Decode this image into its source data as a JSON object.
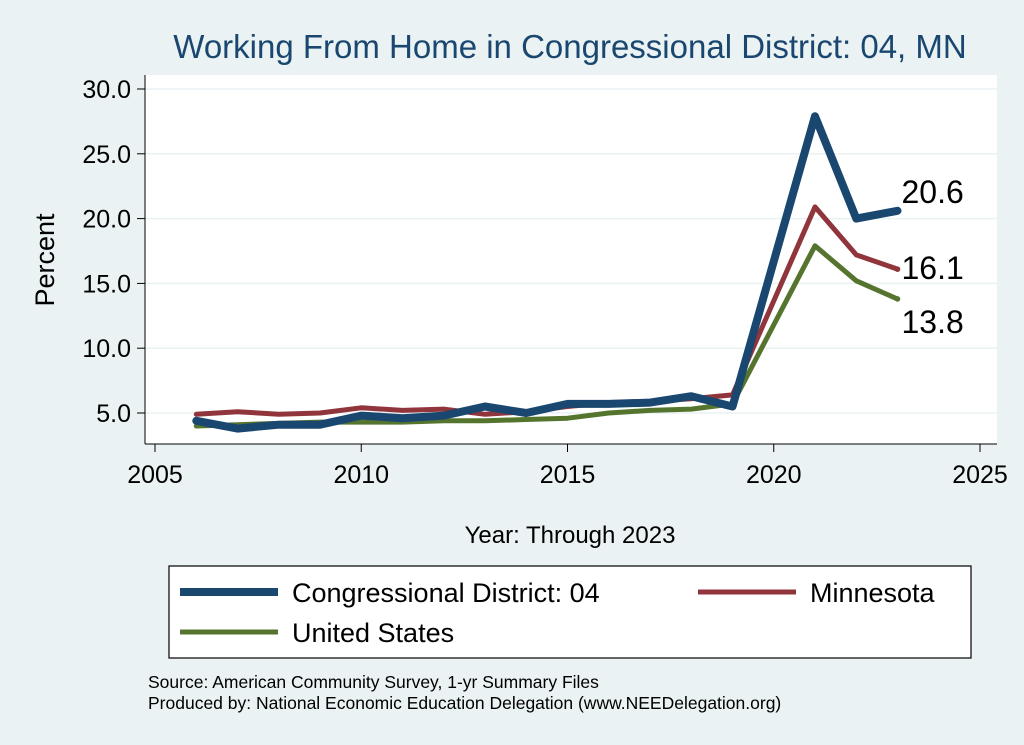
{
  "chart_data": {
    "type": "line",
    "title": "Working From Home in Congressional District: 04, MN",
    "xlabel": "Year: Through 2023",
    "ylabel": "Percent",
    "xlim": [
      2005,
      2025
    ],
    "ylim": [
      3.5,
      30.0
    ],
    "xticks": [
      2005,
      2010,
      2015,
      2020,
      2025
    ],
    "xtick_labels": [
      "2005",
      "2010",
      "2015",
      "2020",
      "2025"
    ],
    "yticks": [
      5,
      10,
      15,
      20,
      25,
      30
    ],
    "ytick_labels": [
      "5.0",
      "10.0",
      "15.0",
      "20.0",
      "25.0",
      "30.0"
    ],
    "grid": true,
    "legend_position": "bottom",
    "x": [
      2006,
      2007,
      2008,
      2009,
      2010,
      2011,
      2012,
      2013,
      2014,
      2015,
      2016,
      2017,
      2018,
      2019,
      2021,
      2022,
      2023
    ],
    "series": [
      {
        "name": "Congressional District: 04",
        "color": "#1a476f",
        "width": 8,
        "values": [
          4.4,
          3.8,
          4.1,
          4.1,
          4.8,
          4.6,
          4.8,
          5.5,
          5.0,
          5.7,
          5.7,
          5.8,
          6.3,
          5.5,
          27.9,
          20.0,
          20.6
        ],
        "end_label": "20.6"
      },
      {
        "name": "Minnesota",
        "color": "#90353b",
        "width": 5,
        "values": [
          4.9,
          5.1,
          4.9,
          5.0,
          5.4,
          5.2,
          5.3,
          4.9,
          5.1,
          5.5,
          5.8,
          5.9,
          6.1,
          6.4,
          20.9,
          17.2,
          16.1
        ],
        "end_label": "16.1"
      },
      {
        "name": "United States",
        "color": "#55752f",
        "width": 5,
        "values": [
          4.0,
          4.1,
          4.2,
          4.3,
          4.3,
          4.3,
          4.4,
          4.4,
          4.5,
          4.6,
          5.0,
          5.2,
          5.3,
          5.7,
          17.9,
          15.2,
          13.8
        ],
        "end_label": "13.8"
      }
    ],
    "source": "Source: American Community Survey, 1-yr Summary Files",
    "producer": "Produced by: National Economic Education Delegation (www.NEEDelegation.org)"
  }
}
